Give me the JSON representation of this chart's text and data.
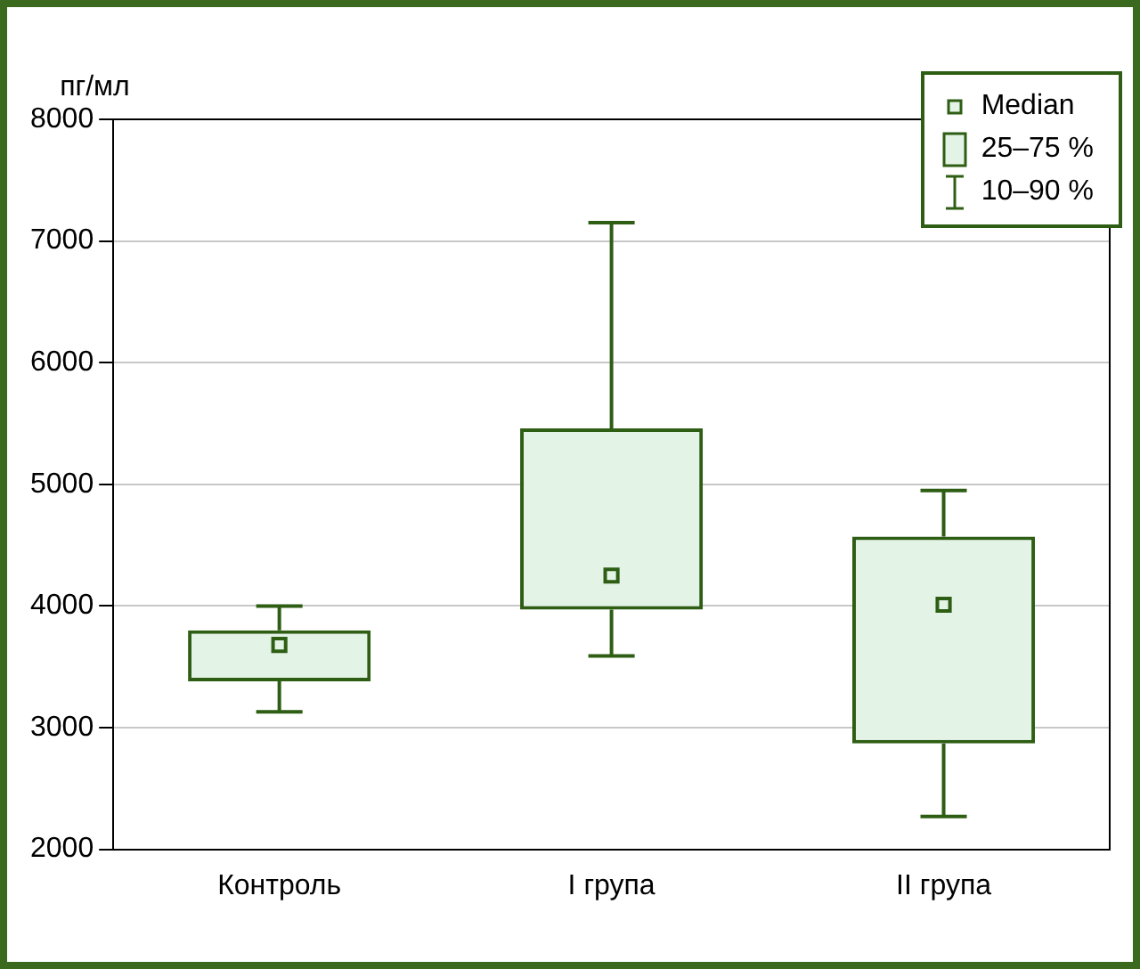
{
  "chart_data": {
    "type": "box",
    "ylabel": "пг/мл",
    "categories": [
      "Контроль",
      "I група",
      "II група"
    ],
    "series": [
      {
        "color": "#2e5e14",
        "boxes": [
          {
            "low": 3130,
            "q1": 3380,
            "median": 3680,
            "q3": 3800,
            "high": 4000
          },
          {
            "low": 3590,
            "q1": 3970,
            "median": 4250,
            "q3": 5460,
            "high": 7150
          },
          {
            "low": 2270,
            "q1": 2870,
            "median": 4010,
            "q3": 4570,
            "high": 4950
          }
        ]
      }
    ],
    "ylim": [
      2000,
      8000
    ],
    "yticks": [
      2000,
      3000,
      4000,
      5000,
      6000,
      7000,
      8000
    ],
    "grid": "y",
    "annotations": [
      "Median",
      "25–75 %",
      "10–90 %"
    ]
  }
}
